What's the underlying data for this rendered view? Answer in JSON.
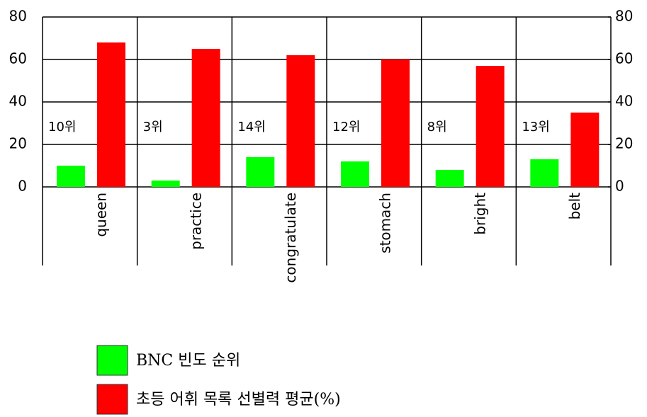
{
  "chart_data": {
    "type": "bar",
    "categories": [
      "queen",
      "practice",
      "congratulate",
      "stomach",
      "bright",
      "belt"
    ],
    "series": [
      {
        "name": "BNC 빈도 순위",
        "color": "#00ff00",
        "values": [
          10,
          3,
          14,
          12,
          8,
          13
        ],
        "value_labels": [
          "10위",
          "3위",
          "14위",
          "12위",
          "8위",
          "13위"
        ]
      },
      {
        "name": "초등 어휘 목록 선별력 평균(%)",
        "color": "#ff0000",
        "values": [
          68,
          65,
          62,
          60,
          57,
          35
        ]
      }
    ],
    "ylim": [
      0,
      80
    ],
    "yticks": [
      0,
      20,
      40,
      60,
      80
    ],
    "y2lim": [
      0,
      80
    ],
    "y2ticks": [
      0,
      20,
      40,
      60,
      80
    ],
    "grid": true
  }
}
